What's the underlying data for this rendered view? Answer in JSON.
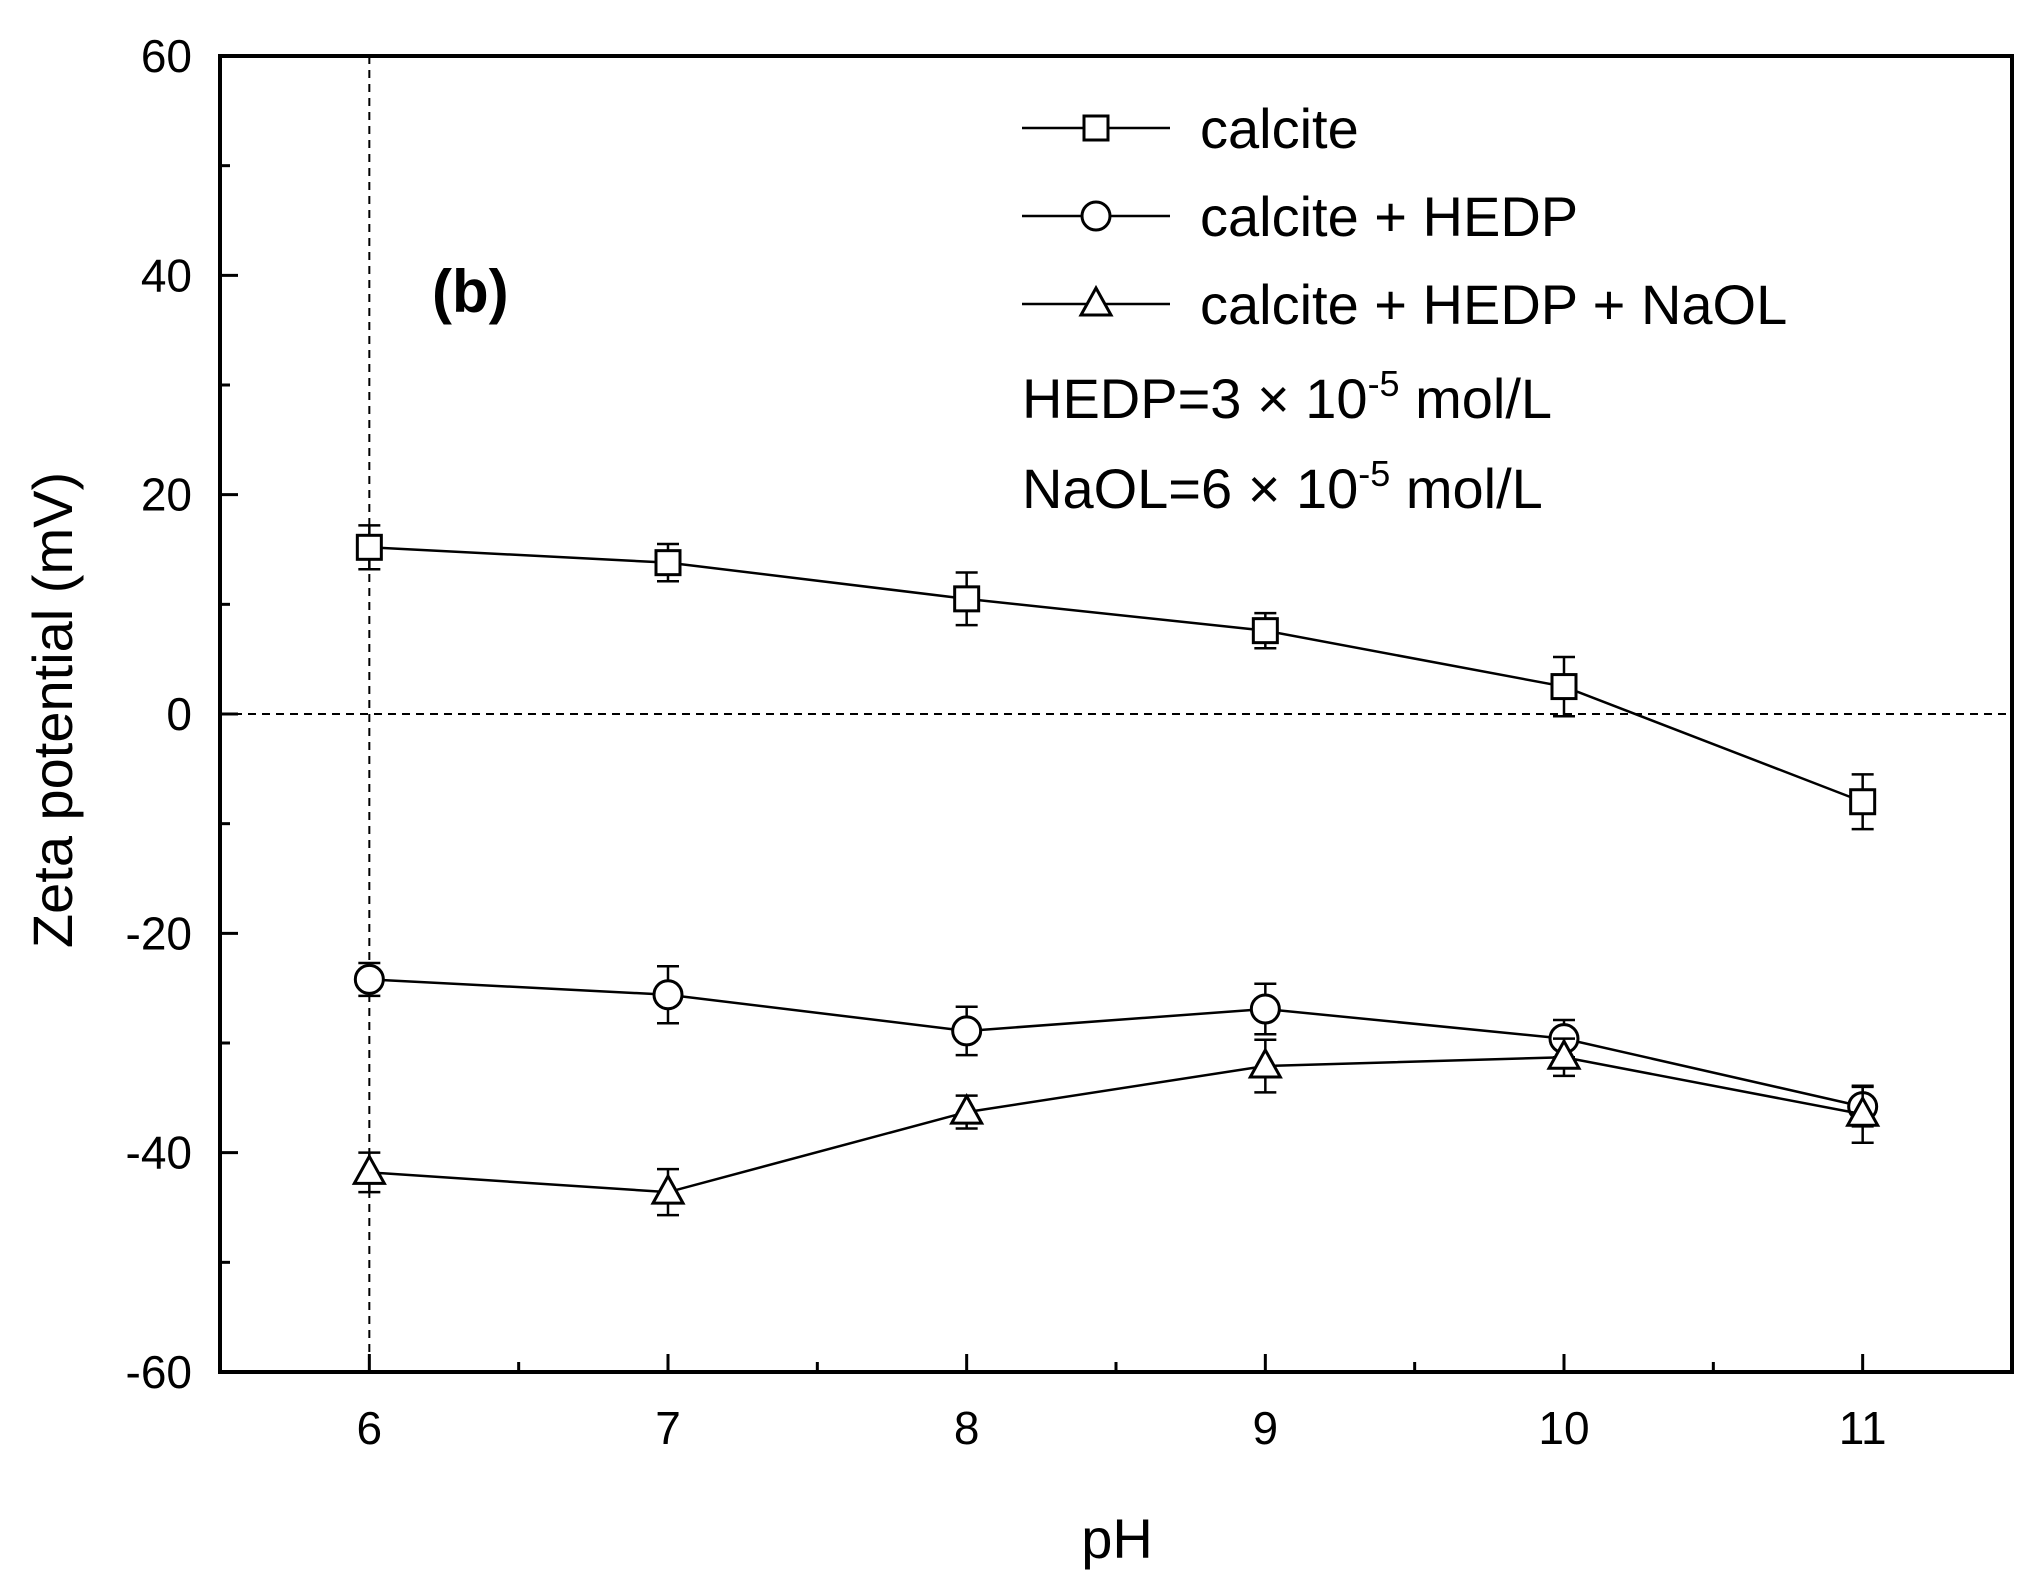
{
  "chart_data": {
    "type": "line",
    "panel_label": "(b)",
    "xlabel": "pH",
    "ylabel": "Zeta potential (mV)",
    "xlim": [
      5.5,
      11.5
    ],
    "ylim": [
      -60,
      60
    ],
    "x_ticks": [
      6,
      7,
      8,
      9,
      10,
      11
    ],
    "x_tick_labels": [
      "6",
      "7",
      "8",
      "9",
      "10",
      "11"
    ],
    "y_ticks": [
      -60,
      -40,
      -20,
      0,
      20,
      40,
      60
    ],
    "y_tick_labels": [
      "-60",
      "-40",
      "-20",
      "0",
      "20",
      "40",
      "60"
    ],
    "reference_lines": {
      "x": 6,
      "y": 0
    },
    "legend_position": "top-right",
    "notes": [
      {
        "prefix": "HEDP=3",
        "times": "×",
        "base": "10",
        "exp": "-5",
        "unit": "mol/L"
      },
      {
        "prefix": "NaOL=6",
        "times": "×",
        "base": "10",
        "exp": "-5",
        "unit": "mol/L"
      }
    ],
    "series": [
      {
        "name": "calcite",
        "marker": "square",
        "x": [
          6,
          7,
          8,
          9,
          10,
          11
        ],
        "values": [
          15.2,
          13.8,
          10.5,
          7.6,
          2.5,
          -8.0
        ],
        "errors": [
          2.0,
          1.7,
          2.4,
          1.6,
          2.7,
          2.5
        ]
      },
      {
        "name": "calcite + HEDP",
        "marker": "circle",
        "x": [
          6,
          7,
          8,
          9,
          10,
          11
        ],
        "values": [
          -24.2,
          -25.6,
          -28.9,
          -26.9,
          -29.6,
          -35.8
        ],
        "errors": [
          1.5,
          2.6,
          2.2,
          2.3,
          1.7,
          1.8
        ]
      },
      {
        "name": "calcite + HEDP + NaOL",
        "marker": "triangle",
        "x": [
          6,
          7,
          8,
          9,
          10,
          11
        ],
        "values": [
          -41.8,
          -43.6,
          -36.3,
          -32.1,
          -31.3,
          -36.5
        ],
        "errors": [
          1.8,
          2.1,
          1.5,
          2.4,
          1.7,
          2.6
        ]
      }
    ]
  }
}
